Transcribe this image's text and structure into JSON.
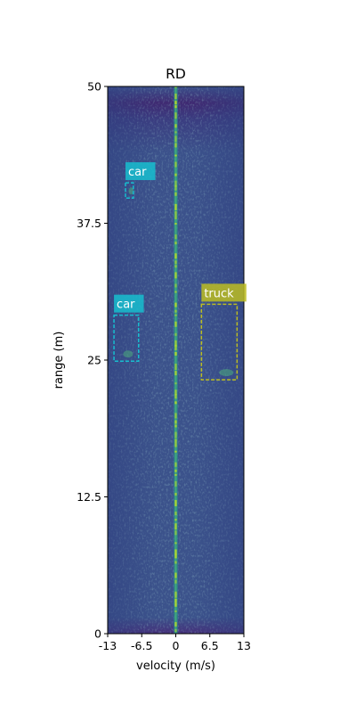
{
  "chart_data": {
    "type": "heatmap",
    "title": "RD",
    "xlabel": "velocity (m/s)",
    "ylabel": "range (m)",
    "xlim": [
      -13,
      13
    ],
    "ylim": [
      0,
      50
    ],
    "x_ticks": [
      "-13",
      "-6.5",
      "0",
      "6.5",
      "13"
    ],
    "x_tick_values": [
      -13,
      -6.5,
      0,
      6.5,
      13
    ],
    "y_ticks": [
      "0",
      "12.5",
      "25",
      "37.5",
      "50"
    ],
    "y_tick_values": [
      0,
      12.5,
      25,
      37.5,
      50
    ],
    "colormap": "viridis",
    "background_color": "#3b528b",
    "zero_doppler_color": "#b5de2b",
    "detections": [
      {
        "label": "car",
        "color": "#17becf",
        "x_range": [
          -9.6,
          -8.1
        ],
        "y_range": [
          39.8,
          41.2
        ]
      },
      {
        "label": "car",
        "color": "#17becf",
        "x_range": [
          -11.8,
          -7.1
        ],
        "y_range": [
          24.9,
          29.1
        ]
      },
      {
        "label": "truck",
        "color": "#bcbd22",
        "x_range": [
          4.9,
          11.7
        ],
        "y_range": [
          23.2,
          30.1
        ]
      }
    ]
  }
}
